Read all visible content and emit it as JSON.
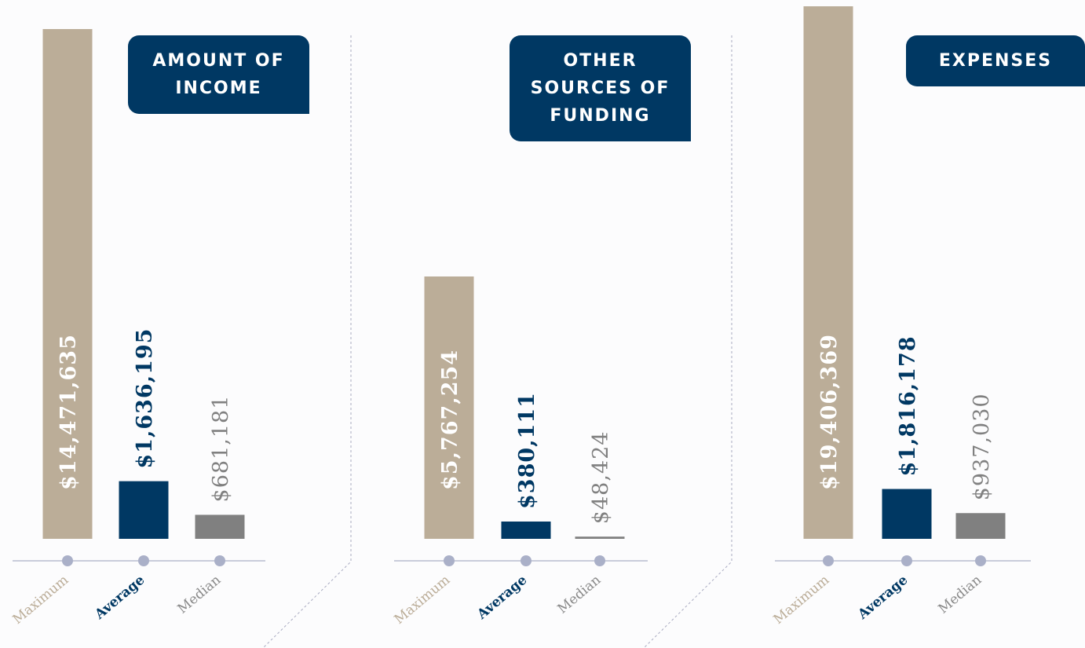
{
  "chart_data": [
    {
      "type": "bar",
      "title": "AMOUNT OF INCOME",
      "categories": [
        "Maximum",
        "Average",
        "Median"
      ],
      "values": [
        14471635,
        1636195,
        681181
      ],
      "value_labels": [
        "$14,471,635",
        "$1,636,195",
        "$681,181"
      ],
      "colors": [
        "#bbad98",
        "#003863",
        "#808080"
      ]
    },
    {
      "type": "bar",
      "title": "OTHER SOURCES OF FUNDING",
      "categories": [
        "Maximum",
        "Average",
        "Median"
      ],
      "values": [
        5767254,
        380111,
        48424
      ],
      "value_labels": [
        "$5,767,254",
        "$380,111",
        "$48,424"
      ],
      "colors": [
        "#bbad98",
        "#003863",
        "#808080"
      ]
    },
    {
      "type": "bar",
      "title": "EXPENSES",
      "categories": [
        "Maximum",
        "Average",
        "Median"
      ],
      "values": [
        19406369,
        1816178,
        937030
      ],
      "value_labels": [
        "$19,406,369",
        "$1,816,178",
        "$937,030"
      ],
      "colors": [
        "#bbad98",
        "#003863",
        "#808080"
      ]
    }
  ]
}
